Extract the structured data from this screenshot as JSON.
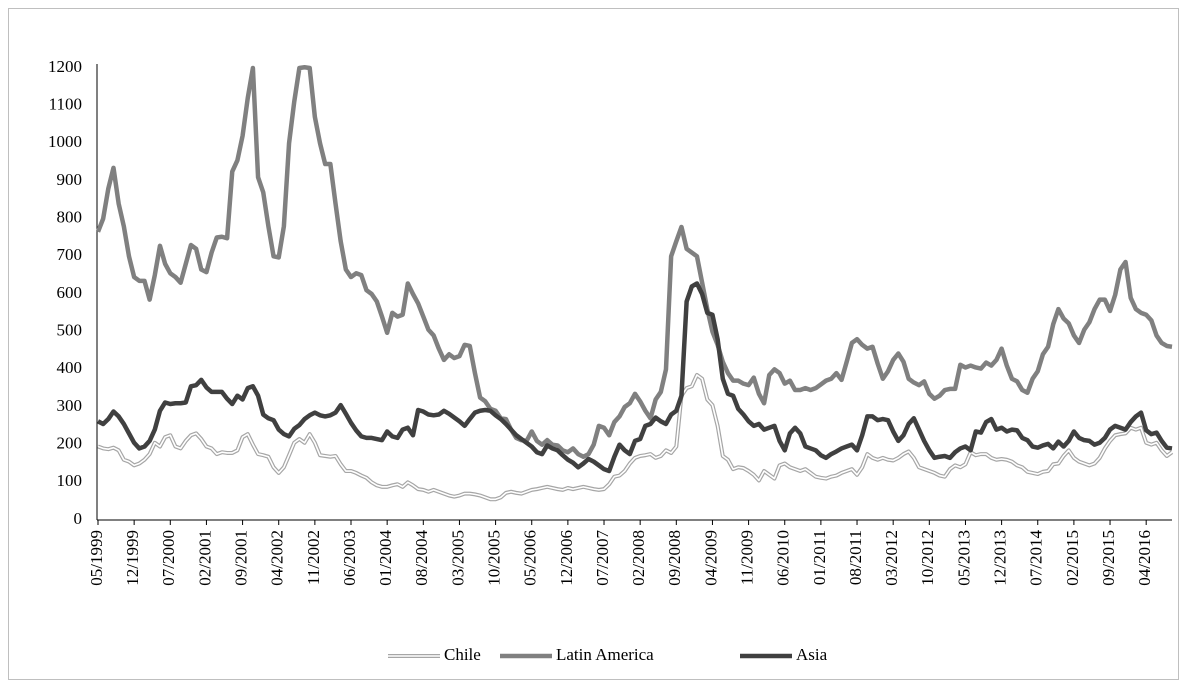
{
  "chart_data": {
    "type": "line",
    "categories": [
      "05/1999",
      null,
      null,
      null,
      null,
      null,
      null,
      "12/1999",
      null,
      null,
      null,
      null,
      null,
      null,
      "07/2000",
      null,
      null,
      null,
      null,
      null,
      null,
      "02/2001",
      null,
      null,
      null,
      null,
      null,
      null,
      "09/2001",
      null,
      null,
      null,
      null,
      null,
      null,
      "04/2002",
      null,
      null,
      null,
      null,
      null,
      null,
      "11/2002",
      null,
      null,
      null,
      null,
      null,
      null,
      "06/2003",
      null,
      null,
      null,
      null,
      null,
      null,
      "01/2004",
      null,
      null,
      null,
      null,
      null,
      null,
      "08/2004",
      null,
      null,
      null,
      null,
      null,
      null,
      "03/2005",
      null,
      null,
      null,
      null,
      null,
      null,
      "10/2005",
      null,
      null,
      null,
      null,
      null,
      null,
      "05/2006",
      null,
      null,
      null,
      null,
      null,
      null,
      "12/2006",
      null,
      null,
      null,
      null,
      null,
      null,
      "07/2007",
      null,
      null,
      null,
      null,
      null,
      null,
      "02/2008",
      null,
      null,
      null,
      null,
      null,
      null,
      "09/2008",
      null,
      null,
      null,
      null,
      null,
      null,
      "04/2009",
      null,
      null,
      null,
      null,
      null,
      null,
      "11/2009",
      null,
      null,
      null,
      null,
      null,
      null,
      "06/2010",
      null,
      null,
      null,
      null,
      null,
      null,
      "01/2011",
      null,
      null,
      null,
      null,
      null,
      null,
      "08/2011",
      null,
      null,
      null,
      null,
      null,
      null,
      "03/2012",
      null,
      null,
      null,
      null,
      null,
      null,
      "10/2012",
      null,
      null,
      null,
      null,
      null,
      null,
      "05/2013",
      null,
      null,
      null,
      null,
      null,
      null,
      "12/2013",
      null,
      null,
      null,
      null,
      null,
      null,
      "07/2014",
      null,
      null,
      null,
      null,
      null,
      null,
      "02/2015",
      null,
      null,
      null,
      null,
      null,
      null,
      "09/2015",
      null,
      null,
      null,
      null,
      null,
      null,
      "04/2016",
      null,
      null,
      null,
      null,
      null
    ],
    "series": [
      {
        "name": "Chile",
        "color": "#a6a6a6",
        "values": [
          195,
          190,
          188,
          192,
          185,
          160,
          155,
          145,
          150,
          160,
          175,
          205,
          195,
          220,
          225,
          195,
          190,
          210,
          225,
          230,
          215,
          195,
          190,
          175,
          180,
          178,
          178,
          185,
          220,
          228,
          200,
          175,
          172,
          168,
          140,
          125,
          140,
          172,
          205,
          215,
          205,
          228,
          205,
          172,
          170,
          168,
          170,
          148,
          130,
          130,
          125,
          118,
          112,
          100,
          92,
          88,
          88,
          92,
          95,
          88,
          100,
          92,
          82,
          80,
          75,
          80,
          75,
          70,
          65,
          62,
          65,
          70,
          70,
          68,
          65,
          60,
          55,
          55,
          60,
          72,
          75,
          72,
          70,
          75,
          80,
          82,
          85,
          88,
          85,
          82,
          80,
          85,
          82,
          85,
          88,
          85,
          82,
          80,
          82,
          95,
          115,
          118,
          130,
          150,
          165,
          170,
          172,
          175,
          165,
          170,
          185,
          178,
          195,
          330,
          350,
          355,
          385,
          375,
          320,
          305,
          250,
          170,
          160,
          135,
          140,
          138,
          130,
          120,
          105,
          130,
          120,
          110,
          145,
          150,
          140,
          135,
          130,
          135,
          125,
          115,
          112,
          110,
          115,
          118,
          125,
          130,
          135,
          120,
          140,
          175,
          165,
          160,
          165,
          160,
          158,
          165,
          175,
          182,
          165,
          140,
          135,
          130,
          125,
          118,
          115,
          135,
          145,
          140,
          148,
          180,
          172,
          175,
          175,
          165,
          160,
          162,
          160,
          155,
          145,
          140,
          128,
          125,
          122,
          128,
          130,
          148,
          150,
          170,
          185,
          165,
          155,
          150,
          145,
          150,
          165,
          190,
          210,
          225,
          228,
          230,
          245,
          240,
          245,
          205,
          200,
          205,
          185,
          170,
          180
        ]
      },
      {
        "name": "Latin America",
        "color": "#808080",
        "values": [
          765,
          800,
          880,
          935,
          840,
          780,
          700,
          645,
          635,
          635,
          585,
          650,
          728,
          680,
          655,
          645,
          630,
          680,
          730,
          720,
          665,
          658,
          710,
          750,
          752,
          748,
          925,
          955,
          1020,
          1120,
          1200,
          910,
          870,
          780,
          700,
          697,
          780,
          1000,
          1110,
          1200,
          1202,
          1200,
          1070,
          1000,
          945,
          945,
          840,
          740,
          665,
          645,
          655,
          650,
          610,
          600,
          580,
          540,
          497,
          550,
          540,
          545,
          628,
          600,
          575,
          540,
          505,
          490,
          455,
          425,
          440,
          430,
          435,
          465,
          462,
          390,
          325,
          315,
          295,
          290,
          270,
          268,
          240,
          218,
          212,
          210,
          235,
          210,
          200,
          212,
          200,
          198,
          185,
          180,
          190,
          175,
          168,
          175,
          200,
          250,
          245,
          225,
          260,
          275,
          300,
          310,
          335,
          315,
          290,
          270,
          320,
          340,
          400,
          700,
          740,
          778,
          720,
          710,
          700,
          630,
          560,
          500,
          465,
          420,
          390,
          370,
          370,
          362,
          358,
          378,
          335,
          310,
          385,
          400,
          390,
          362,
          370,
          345,
          345,
          350,
          345,
          350,
          360,
          370,
          375,
          390,
          372,
          420,
          470,
          480,
          465,
          455,
          460,
          415,
          375,
          395,
          425,
          442,
          420,
          375,
          365,
          358,
          368,
          335,
          322,
          330,
          345,
          348,
          348,
          412,
          405,
          410,
          405,
          402,
          418,
          410,
          425,
          455,
          410,
          375,
          368,
          345,
          338,
          375,
          395,
          440,
          460,
          520,
          560,
          535,
          522,
          490,
          470,
          505,
          525,
          560,
          585,
          585,
          555,
          598,
          665,
          685,
          590,
          560,
          550,
          545,
          530,
          490,
          470,
          462,
          460
        ]
      },
      {
        "name": "Asia",
        "color": "#404040",
        "values": [
          262,
          255,
          268,
          288,
          275,
          255,
          230,
          205,
          190,
          195,
          210,
          240,
          290,
          312,
          308,
          310,
          310,
          312,
          355,
          358,
          372,
          352,
          340,
          340,
          340,
          322,
          308,
          330,
          320,
          350,
          355,
          330,
          280,
          270,
          265,
          240,
          228,
          222,
          242,
          252,
          268,
          278,
          285,
          278,
          275,
          278,
          285,
          305,
          282,
          258,
          238,
          222,
          218,
          218,
          215,
          212,
          235,
          222,
          218,
          240,
          245,
          225,
          292,
          288,
          280,
          278,
          280,
          290,
          282,
          272,
          262,
          250,
          268,
          285,
          290,
          292,
          290,
          278,
          268,
          255,
          240,
          225,
          215,
          205,
          195,
          180,
          175,
          198,
          190,
          185,
          172,
          160,
          152,
          140,
          150,
          162,
          155,
          145,
          135,
          130,
          168,
          200,
          185,
          175,
          210,
          215,
          250,
          255,
          272,
          262,
          255,
          280,
          290,
          330,
          580,
          620,
          628,
          600,
          550,
          545,
          480,
          375,
          335,
          330,
          295,
          280,
          262,
          250,
          255,
          240,
          245,
          250,
          210,
          185,
          230,
          245,
          230,
          195,
          190,
          185,
          172,
          165,
          175,
          182,
          190,
          195,
          200,
          185,
          225,
          275,
          275,
          265,
          268,
          265,
          235,
          210,
          225,
          255,
          270,
          240,
          210,
          185,
          165,
          168,
          170,
          165,
          180,
          190,
          195,
          185,
          235,
          232,
          260,
          268,
          240,
          245,
          235,
          240,
          238,
          218,
          212,
          195,
          192,
          198,
          202,
          190,
          208,
          195,
          210,
          235,
          218,
          212,
          210,
          200,
          205,
          218,
          240,
          250,
          245,
          240,
          260,
          275,
          285,
          238,
          228,
          232,
          210,
          192,
          190
        ]
      }
    ],
    "ylim": [
      0,
      1200
    ],
    "yticks": [
      0,
      100,
      200,
      300,
      400,
      500,
      600,
      700,
      800,
      900,
      1000,
      1100,
      1200
    ],
    "legend": "bottom"
  }
}
